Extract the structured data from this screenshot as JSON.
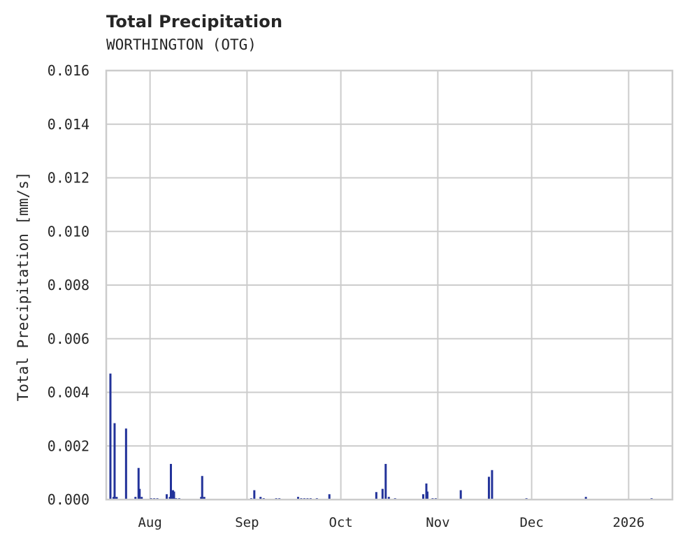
{
  "header": {
    "title": "Total Precipitation",
    "subtitle": "WORTHINGTON (OTG)"
  },
  "colors": {
    "series": "#23339a",
    "grid": "#cccccc",
    "text": "#262626",
    "background": "#ffffff"
  },
  "chart_data": {
    "type": "bar",
    "title": "Total Precipitation",
    "subtitle": "WORTHINGTON (OTG)",
    "xlabel": "",
    "ylabel": "Total Precipitation [mm/s]",
    "ylim": [
      0,
      0.016
    ],
    "yticks": [
      "0.000",
      "0.002",
      "0.004",
      "0.006",
      "0.008",
      "0.010",
      "0.012",
      "0.014",
      "0.016"
    ],
    "xticks": [
      "Aug",
      "Sep",
      "Oct",
      "Nov",
      "Dec",
      "2026"
    ],
    "xlim": [
      "2025-07-18",
      "2026-01-15"
    ],
    "grid": true,
    "legend": false,
    "series": [
      {
        "name": "Total Precipitation",
        "points": [
          {
            "x": "2025-07-19",
            "y": 0.0047
          },
          {
            "x": "2025-07-20",
            "y": 0.0001
          },
          {
            "x": "2025-07-20",
            "y": 0.00285
          },
          {
            "x": "2025-07-21",
            "y": 0.0001
          },
          {
            "x": "2025-07-24",
            "y": 0.00265
          },
          {
            "x": "2025-07-27",
            "y": 0.0001
          },
          {
            "x": "2025-07-28",
            "y": 0.00118
          },
          {
            "x": "2025-07-28",
            "y": 0.0004
          },
          {
            "x": "2025-07-29",
            "y": 0.0001
          },
          {
            "x": "2025-08-01",
            "y": 5e-05
          },
          {
            "x": "2025-08-02",
            "y": 5e-05
          },
          {
            "x": "2025-08-03",
            "y": 5e-05
          },
          {
            "x": "2025-08-06",
            "y": 0.0002
          },
          {
            "x": "2025-08-07",
            "y": 0.0001
          },
          {
            "x": "2025-08-07",
            "y": 0.00133
          },
          {
            "x": "2025-08-08",
            "y": 0.00035
          },
          {
            "x": "2025-08-08",
            "y": 0.0003
          },
          {
            "x": "2025-08-09",
            "y": 5e-05
          },
          {
            "x": "2025-08-10",
            "y": 5e-05
          },
          {
            "x": "2025-08-17",
            "y": 0.0001
          },
          {
            "x": "2025-08-17",
            "y": 0.00088
          },
          {
            "x": "2025-08-18",
            "y": 0.0001
          },
          {
            "x": "2025-09-02",
            "y": 5e-05
          },
          {
            "x": "2025-09-03",
            "y": 0.00035
          },
          {
            "x": "2025-09-05",
            "y": 0.0001
          },
          {
            "x": "2025-09-06",
            "y": 5e-05
          },
          {
            "x": "2025-09-10",
            "y": 5e-05
          },
          {
            "x": "2025-09-11",
            "y": 5e-05
          },
          {
            "x": "2025-09-17",
            "y": 0.0001
          },
          {
            "x": "2025-09-18",
            "y": 5e-05
          },
          {
            "x": "2025-09-19",
            "y": 5e-05
          },
          {
            "x": "2025-09-20",
            "y": 5e-05
          },
          {
            "x": "2025-09-21",
            "y": 5e-05
          },
          {
            "x": "2025-09-23",
            "y": 5e-05
          },
          {
            "x": "2025-09-27",
            "y": 0.0002
          },
          {
            "x": "2025-10-12",
            "y": 0.00028
          },
          {
            "x": "2025-10-14",
            "y": 0.0004
          },
          {
            "x": "2025-10-15",
            "y": 0.00133
          },
          {
            "x": "2025-10-16",
            "y": 0.0001
          },
          {
            "x": "2025-10-18",
            "y": 5e-05
          },
          {
            "x": "2025-10-27",
            "y": 0.0002
          },
          {
            "x": "2025-10-28",
            "y": 0.0006
          },
          {
            "x": "2025-10-28",
            "y": 0.0003
          },
          {
            "x": "2025-10-30",
            "y": 5e-05
          },
          {
            "x": "2025-10-31",
            "y": 5e-05
          },
          {
            "x": "2025-11-08",
            "y": 0.00035
          },
          {
            "x": "2025-11-17",
            "y": 0.00085
          },
          {
            "x": "2025-11-18",
            "y": 0.0011
          },
          {
            "x": "2025-11-29",
            "y": 5e-05
          },
          {
            "x": "2025-12-18",
            "y": 0.0001
          },
          {
            "x": "2026-01-08",
            "y": 5e-05
          }
        ]
      }
    ]
  }
}
